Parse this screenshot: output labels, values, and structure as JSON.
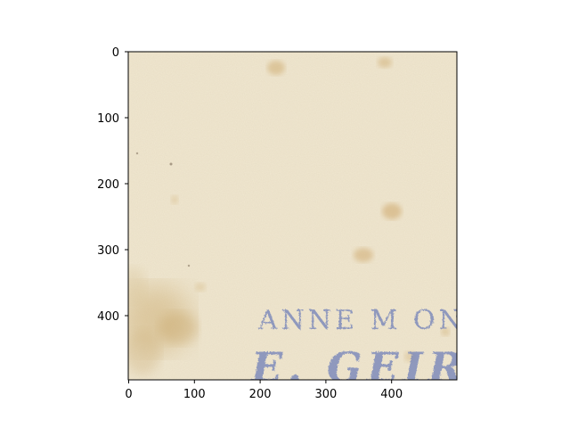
{
  "image": {
    "stamp_line_1": "ANNE M ON",
    "stamp_line_2": "E. GEIR",
    "paper_color": "#efe6cf",
    "stain_color": "#c9a86a",
    "ink_color": "#7080b8"
  },
  "axes": {
    "x_ticks": [
      "0",
      "100",
      "200",
      "300",
      "400"
    ],
    "y_ticks": [
      "0",
      "100",
      "200",
      "300",
      "400"
    ],
    "x_range": [
      0,
      500
    ],
    "y_range": [
      0,
      500
    ]
  }
}
